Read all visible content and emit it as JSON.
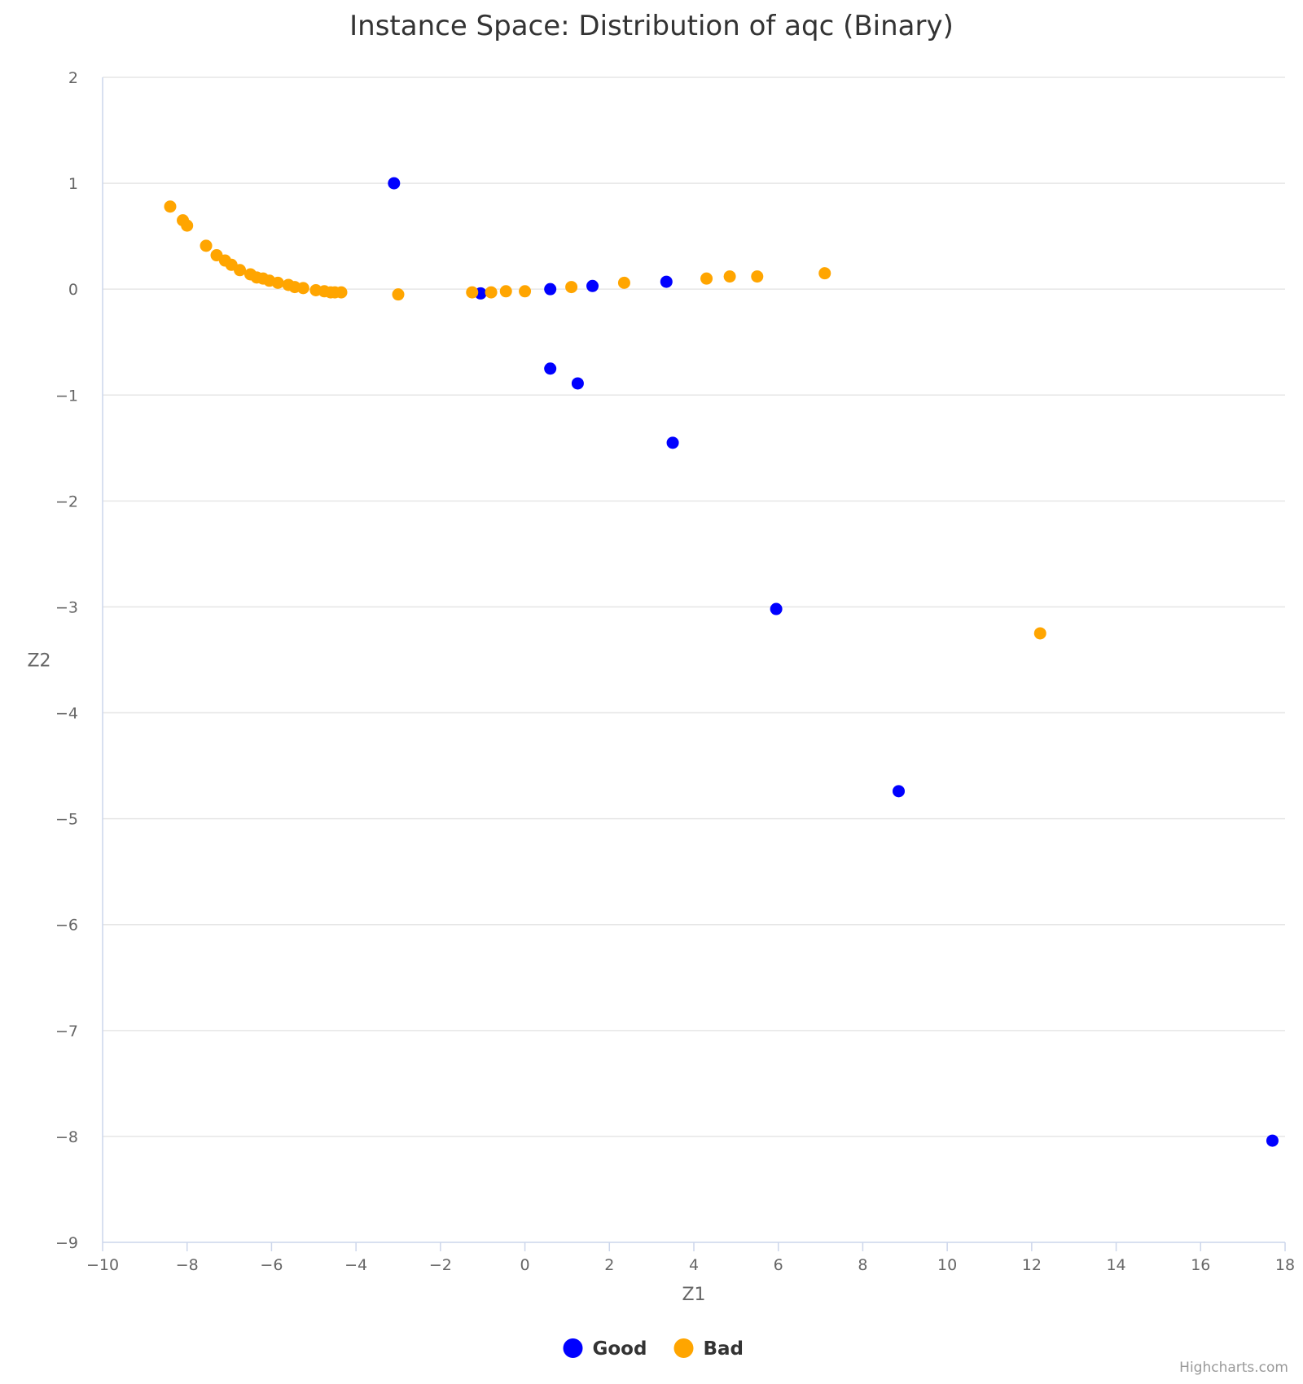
{
  "chart_data": {
    "type": "scatter",
    "title": "Instance Space: Distribution of aqc (Binary)",
    "xlabel": "Z1",
    "ylabel": "Z2",
    "xlim": [
      -10,
      18
    ],
    "ylim": [
      -9,
      2
    ],
    "xticks": [
      -10,
      -8,
      -6,
      -4,
      -2,
      0,
      2,
      4,
      6,
      8,
      10,
      12,
      14,
      16,
      18
    ],
    "yticks": [
      2,
      1,
      0,
      -1,
      -2,
      -3,
      -4,
      -5,
      -6,
      -7,
      -8,
      -9
    ],
    "grid": "horizontal",
    "legend_position": "bottom-center",
    "series": [
      {
        "name": "Good",
        "color": "#0000ff",
        "points": [
          [
            -3.1,
            1.0
          ],
          [
            -1.05,
            -0.04
          ],
          [
            0.6,
            0.0
          ],
          [
            1.6,
            0.03
          ],
          [
            3.35,
            0.07
          ],
          [
            0.6,
            -0.75
          ],
          [
            1.25,
            -0.89
          ],
          [
            3.5,
            -1.45
          ],
          [
            5.95,
            -3.02
          ],
          [
            8.85,
            -4.74
          ],
          [
            17.7,
            -8.04
          ]
        ]
      },
      {
        "name": "Bad",
        "color": "#ffa500",
        "points": [
          [
            -8.4,
            0.78
          ],
          [
            -8.1,
            0.65
          ],
          [
            -8.0,
            0.6
          ],
          [
            -7.55,
            0.41
          ],
          [
            -7.3,
            0.32
          ],
          [
            -7.1,
            0.27
          ],
          [
            -6.95,
            0.23
          ],
          [
            -6.75,
            0.18
          ],
          [
            -6.5,
            0.14
          ],
          [
            -6.35,
            0.11
          ],
          [
            -6.2,
            0.1
          ],
          [
            -6.05,
            0.08
          ],
          [
            -5.85,
            0.06
          ],
          [
            -5.6,
            0.04
          ],
          [
            -5.45,
            0.02
          ],
          [
            -5.25,
            0.01
          ],
          [
            -4.95,
            -0.01
          ],
          [
            -4.75,
            -0.02
          ],
          [
            -4.6,
            -0.03
          ],
          [
            -4.5,
            -0.03
          ],
          [
            -4.35,
            -0.03
          ],
          [
            -3.0,
            -0.05
          ],
          [
            -1.25,
            -0.03
          ],
          [
            -0.8,
            -0.03
          ],
          [
            -0.45,
            -0.02
          ],
          [
            0.0,
            -0.02
          ],
          [
            1.1,
            0.02
          ],
          [
            2.35,
            0.06
          ],
          [
            4.3,
            0.1
          ],
          [
            4.85,
            0.12
          ],
          [
            5.5,
            0.12
          ],
          [
            7.1,
            0.15
          ],
          [
            12.2,
            -3.25
          ]
        ]
      }
    ]
  },
  "credits": "Highcharts.com"
}
